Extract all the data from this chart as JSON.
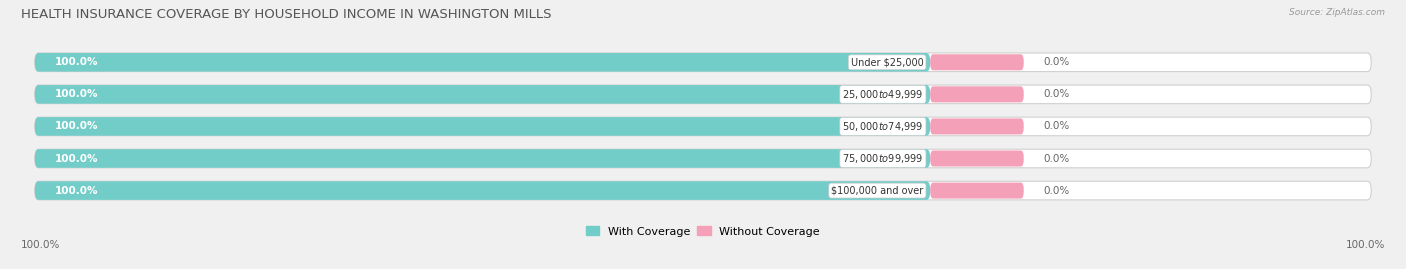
{
  "title": "HEALTH INSURANCE COVERAGE BY HOUSEHOLD INCOME IN WASHINGTON MILLS",
  "source": "Source: ZipAtlas.com",
  "categories": [
    "Under $25,000",
    "$25,000 to $49,999",
    "$50,000 to $74,999",
    "$75,000 to $99,999",
    "$100,000 and over"
  ],
  "with_coverage": [
    100.0,
    100.0,
    100.0,
    100.0,
    100.0
  ],
  "without_coverage": [
    0.0,
    0.0,
    0.0,
    0.0,
    0.0
  ],
  "color_with": "#72cdc9",
  "color_without": "#f4a0b8",
  "bg_color": "#f0f0f0",
  "bar_track_color": "#e0e0e0",
  "bar_track_edge": "#d0d0d0",
  "title_fontsize": 9.5,
  "label_fontsize": 7.5,
  "legend_fontsize": 8,
  "bar_height": 0.58,
  "without_bar_pct": 6,
  "xlim": [
    0,
    100
  ]
}
